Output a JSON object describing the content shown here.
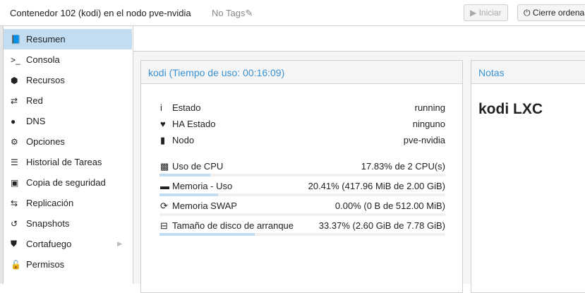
{
  "header": {
    "title": "Contenedor 102 (kodi) en el nodo pve-nvidia",
    "tags": "No Tags",
    "start_label": "Iniciar",
    "shutdown_label": "Cierre ordena"
  },
  "sidebar": {
    "items": [
      {
        "label": "Resumen",
        "icon": "book-icon",
        "glyph": "📘",
        "selected": true
      },
      {
        "label": "Consola",
        "icon": "terminal-icon",
        "glyph": ">_"
      },
      {
        "label": "Recursos",
        "icon": "cube-icon",
        "glyph": "⬢"
      },
      {
        "label": "Red",
        "icon": "exchange-icon",
        "glyph": "⇄"
      },
      {
        "label": "DNS",
        "icon": "globe-icon",
        "glyph": "●"
      },
      {
        "label": "Opciones",
        "icon": "gear-icon",
        "glyph": "⚙"
      },
      {
        "label": "Historial de Tareas",
        "icon": "list-icon",
        "glyph": "☰"
      },
      {
        "label": "Copia de seguridad",
        "icon": "floppy-icon",
        "glyph": "▣"
      },
      {
        "label": "Replicación",
        "icon": "retweet-icon",
        "glyph": "⇆"
      },
      {
        "label": "Snapshots",
        "icon": "history-icon",
        "glyph": "↺"
      },
      {
        "label": "Cortafuego",
        "icon": "shield-icon",
        "glyph": "⛊",
        "submenu": true
      },
      {
        "label": "Permisos",
        "icon": "unlock-icon",
        "glyph": "🔓"
      }
    ]
  },
  "status_panel": {
    "title": "kodi (Tiempo de uso: 00:16:09)",
    "info": [
      {
        "label": "Estado",
        "value": "running",
        "icon": "info-icon",
        "glyph": "i"
      },
      {
        "label": "HA Estado",
        "value": "ninguno",
        "icon": "heartbeat-icon",
        "glyph": "♥"
      },
      {
        "label": "Nodo",
        "value": "pve-nvidia",
        "icon": "server-icon",
        "glyph": "▮"
      }
    ],
    "usage": [
      {
        "label": "Uso de CPU",
        "value": "17.83% de 2 CPU(s)",
        "percent": 17.83,
        "icon": "cpu-icon",
        "glyph": "▩"
      },
      {
        "label": "Memoria - Uso",
        "value": "20.41% (417.96 MiB de 2.00 GiB)",
        "percent": 20.41,
        "icon": "memory-icon",
        "glyph": "▬"
      },
      {
        "label": "Memoria SWAP",
        "value": "0.00% (0 B de 512.00 MiB)",
        "percent": 0,
        "icon": "refresh-icon",
        "glyph": "⟳"
      },
      {
        "label": "Tamaño de disco de arranque",
        "value": "33.37% (2.60 GiB de 7.78 GiB)",
        "percent": 33.37,
        "icon": "hdd-icon",
        "glyph": "⊟"
      }
    ]
  },
  "notes_panel": {
    "title": "Notas",
    "content": "kodi LXC"
  }
}
